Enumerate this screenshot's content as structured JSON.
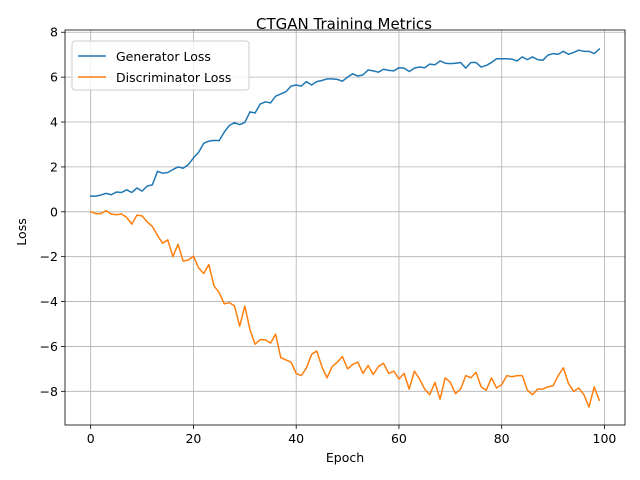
{
  "chart_data": {
    "type": "line",
    "title": "CTGAN Training Metrics",
    "xlabel": "Epoch",
    "ylabel": "Loss",
    "xlim": [
      -5,
      104
    ],
    "ylim": [
      -9.5,
      8.1
    ],
    "xticks": [
      0,
      20,
      40,
      60,
      80,
      100
    ],
    "yticks": [
      -8,
      -6,
      -4,
      -2,
      0,
      2,
      4,
      6,
      8
    ],
    "grid": true,
    "legend_position": "top-left",
    "x": [
      0,
      1,
      2,
      3,
      4,
      5,
      6,
      7,
      8,
      9,
      10,
      11,
      12,
      13,
      14,
      15,
      16,
      17,
      18,
      19,
      20,
      21,
      22,
      23,
      24,
      25,
      26,
      27,
      28,
      29,
      30,
      31,
      32,
      33,
      34,
      35,
      36,
      37,
      38,
      39,
      40,
      41,
      42,
      43,
      44,
      45,
      46,
      47,
      48,
      49,
      50,
      51,
      52,
      53,
      54,
      55,
      56,
      57,
      58,
      59,
      60,
      61,
      62,
      63,
      64,
      65,
      66,
      67,
      68,
      69,
      70,
      71,
      72,
      73,
      74,
      75,
      76,
      77,
      78,
      79,
      80,
      81,
      82,
      83,
      84,
      85,
      86,
      87,
      88,
      89,
      90,
      91,
      92,
      93,
      94,
      95,
      96,
      97,
      98,
      99
    ],
    "series": [
      {
        "name": "Generator Loss",
        "color": "#1f77b4",
        "values": [
          0.7,
          0.7,
          0.75,
          0.82,
          0.76,
          0.88,
          0.86,
          0.98,
          0.86,
          1.06,
          0.92,
          1.15,
          1.2,
          1.8,
          1.72,
          1.75,
          1.88,
          2.0,
          1.94,
          2.1,
          2.4,
          2.65,
          3.05,
          3.15,
          3.18,
          3.17,
          3.55,
          3.85,
          3.97,
          3.88,
          3.98,
          4.45,
          4.4,
          4.8,
          4.9,
          4.85,
          5.15,
          5.25,
          5.35,
          5.6,
          5.65,
          5.6,
          5.8,
          5.65,
          5.8,
          5.85,
          5.92,
          5.92,
          5.9,
          5.82,
          6.0,
          6.15,
          6.05,
          6.1,
          6.32,
          6.28,
          6.22,
          6.35,
          6.3,
          6.28,
          6.42,
          6.4,
          6.25,
          6.4,
          6.45,
          6.42,
          6.58,
          6.55,
          6.72,
          6.62,
          6.6,
          6.62,
          6.65,
          6.4,
          6.65,
          6.65,
          6.45,
          6.52,
          6.65,
          6.82,
          6.82,
          6.82,
          6.8,
          6.72,
          6.9,
          6.78,
          6.9,
          6.78,
          6.75,
          6.98,
          7.05,
          7.02,
          7.15,
          7.02,
          7.1,
          7.2,
          7.15,
          7.15,
          7.05,
          7.25
        ]
      },
      {
        "name": "Discriminator Loss",
        "color": "#ff7f0e",
        "values": [
          0.0,
          -0.08,
          -0.08,
          0.05,
          -0.1,
          -0.13,
          -0.1,
          -0.25,
          -0.55,
          -0.15,
          -0.18,
          -0.45,
          -0.65,
          -1.05,
          -1.4,
          -1.25,
          -2.0,
          -1.45,
          -2.2,
          -2.15,
          -1.98,
          -2.5,
          -2.75,
          -2.35,
          -3.3,
          -3.6,
          -4.1,
          -4.05,
          -4.2,
          -5.1,
          -4.2,
          -5.25,
          -5.9,
          -5.7,
          -5.7,
          -5.85,
          -5.45,
          -6.5,
          -6.6,
          -6.7,
          -7.2,
          -7.3,
          -6.95,
          -6.35,
          -6.2,
          -6.9,
          -7.4,
          -6.9,
          -6.7,
          -6.45,
          -7.0,
          -6.8,
          -6.7,
          -7.2,
          -6.85,
          -7.25,
          -6.9,
          -6.75,
          -7.2,
          -7.1,
          -7.45,
          -7.2,
          -7.9,
          -7.1,
          -7.45,
          -7.9,
          -8.15,
          -7.6,
          -8.35,
          -7.4,
          -7.6,
          -8.1,
          -7.9,
          -7.3,
          -7.4,
          -7.15,
          -7.8,
          -7.95,
          -7.4,
          -7.85,
          -7.7,
          -7.3,
          -7.35,
          -7.3,
          -7.3,
          -7.95,
          -8.15,
          -7.9,
          -7.9,
          -7.8,
          -7.75,
          -7.3,
          -6.95,
          -7.65,
          -8.0,
          -7.85,
          -8.15,
          -8.7,
          -7.8,
          -8.4
        ]
      }
    ]
  }
}
